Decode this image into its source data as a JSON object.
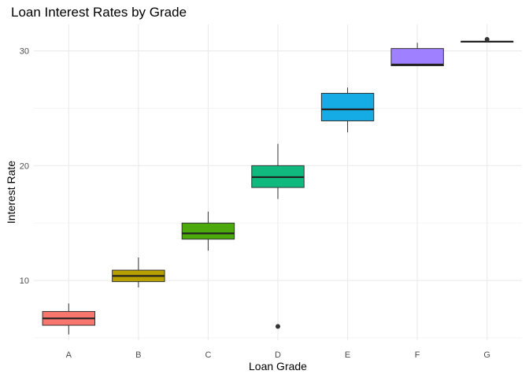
{
  "chart_data": {
    "type": "boxplot",
    "title": "Loan Interest Rates by Grade",
    "xlabel": "Loan Grade",
    "ylabel": "Interest Rate",
    "ylim": [
      4.8,
      32.3
    ],
    "y_ticks": [
      10,
      20,
      30
    ],
    "y_minor_ticks": [
      5,
      15,
      25
    ],
    "grid": true,
    "legend": "none",
    "categories": [
      "A",
      "B",
      "C",
      "D",
      "E",
      "F",
      "G"
    ],
    "boxes": [
      {
        "grade": "A",
        "whisker_low": 5.3,
        "q1": 6.1,
        "median": 6.7,
        "q3": 7.3,
        "whisker_high": 8.0,
        "outliers": [],
        "color": "#F8766D"
      },
      {
        "grade": "B",
        "whisker_low": 9.4,
        "q1": 9.9,
        "median": 10.4,
        "q3": 10.9,
        "whisker_high": 12.0,
        "outliers": [],
        "color": "#B79F00"
      },
      {
        "grade": "C",
        "whisker_low": 12.6,
        "q1": 13.6,
        "median": 14.1,
        "q3": 15.0,
        "whisker_high": 16.0,
        "outliers": [],
        "color": "#4CA90B"
      },
      {
        "grade": "D",
        "whisker_low": 17.1,
        "q1": 18.1,
        "median": 19.0,
        "q3": 20.0,
        "whisker_high": 21.9,
        "outliers": [
          6.0
        ],
        "color": "#10BA7F"
      },
      {
        "grade": "E",
        "whisker_low": 22.9,
        "q1": 23.9,
        "median": 24.9,
        "q3": 26.3,
        "whisker_high": 26.8,
        "outliers": [],
        "color": "#15ACE5"
      },
      {
        "grade": "F",
        "whisker_low": 28.7,
        "q1": 28.7,
        "median": 28.8,
        "q3": 30.2,
        "whisker_high": 30.7,
        "outliers": [],
        "color": "#9F80FF"
      },
      {
        "grade": "G",
        "whisker_low": 30.8,
        "q1": 30.8,
        "median": 30.8,
        "q3": 30.8,
        "whisker_high": 30.8,
        "outliers": [
          31.0
        ],
        "color": "#F564E3"
      }
    ]
  }
}
